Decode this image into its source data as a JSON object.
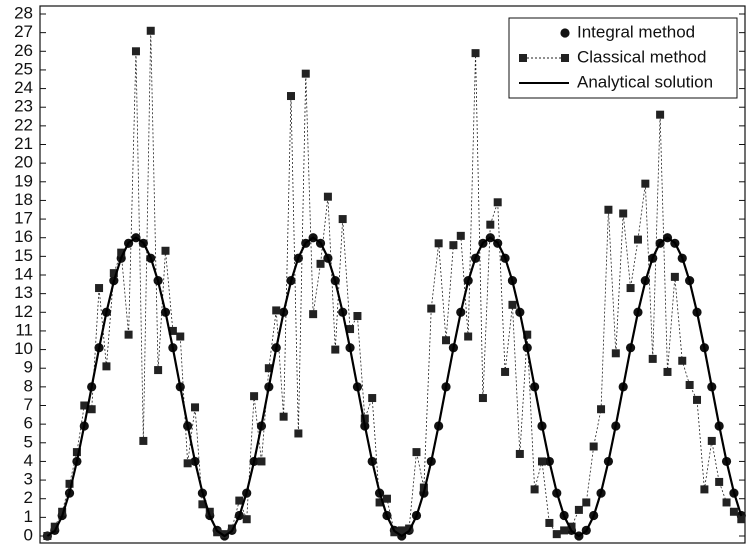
{
  "chart_data": {
    "type": "line",
    "x": [
      0,
      1,
      2,
      3,
      4,
      5,
      6,
      7,
      8,
      9,
      10,
      11,
      12,
      13,
      14,
      15,
      16,
      17,
      18,
      19,
      20,
      21,
      22,
      23,
      24,
      25,
      26,
      27,
      28,
      29,
      30,
      31,
      32,
      33,
      34,
      35,
      36,
      37,
      38,
      39,
      40,
      41,
      42,
      43,
      44,
      45,
      46,
      47,
      48,
      49,
      50,
      51,
      52,
      53,
      54,
      55,
      56,
      57,
      58,
      59,
      60,
      61,
      62,
      63,
      64,
      65,
      66,
      67,
      68,
      69,
      70,
      71,
      72,
      73,
      74,
      75,
      76,
      77,
      78,
      79,
      80,
      81,
      82,
      83,
      84,
      85,
      86,
      87,
      88,
      89,
      90,
      91,
      92,
      93,
      94
    ],
    "series": [
      {
        "name": "Integral method",
        "color": "#111111",
        "style": "circle",
        "values": [
          0,
          0.3,
          1.1,
          2.3,
          4,
          5.9,
          8,
          10.1,
          12,
          13.7,
          14.9,
          15.7,
          16,
          15.7,
          14.9,
          13.7,
          12,
          10.1,
          8,
          5.9,
          4,
          2.3,
          1.1,
          0.3,
          0,
          0.3,
          1.1,
          2.3,
          4,
          5.9,
          8,
          10.1,
          12,
          13.7,
          14.9,
          15.7,
          16,
          15.7,
          14.9,
          13.7,
          12,
          10.1,
          8,
          5.9,
          4,
          2.3,
          1.1,
          0.3,
          0,
          0.3,
          1.1,
          2.3,
          4,
          5.9,
          8,
          10.1,
          12,
          13.7,
          14.9,
          15.7,
          16,
          15.7,
          14.9,
          13.7,
          12,
          10.1,
          8,
          5.9,
          4,
          2.3,
          1.1,
          0.3,
          0,
          0.3,
          1.1,
          2.3,
          4,
          5.9,
          8,
          10.1,
          12,
          13.7,
          14.9,
          15.7,
          16,
          15.7,
          14.9,
          13.7,
          12,
          10.1,
          8,
          5.9,
          4,
          2.3,
          1.1
        ]
      },
      {
        "name": "Classical method",
        "color": "#222222",
        "style": "square-dashed",
        "values": [
          0,
          0.5,
          1.3,
          2.8,
          4.5,
          7,
          6.8,
          13.3,
          9.1,
          14.1,
          15.2,
          10.8,
          26,
          5.1,
          27.1,
          8.9,
          15.3,
          11,
          10.7,
          3.9,
          6.9,
          1.7,
          1.3,
          0.2,
          0.1,
          0.4,
          1.9,
          0.9,
          7.5,
          4,
          9,
          12.1,
          6.4,
          23.6,
          5.5,
          24.8,
          11.9,
          14.6,
          18.2,
          10,
          17,
          11.1,
          11.8,
          6.3,
          7.4,
          1.8,
          2,
          0.2,
          0.3,
          0.4,
          4.5,
          2.6,
          12.2,
          15.7,
          10.5,
          15.6,
          16.1,
          10.7,
          25.9,
          7.4,
          16.7,
          17.9,
          8.8,
          12.4,
          4.4,
          10.8,
          2.5,
          4,
          0.7,
          0.1,
          0.3,
          0.5,
          1.4,
          1.8,
          4.8,
          6.8,
          17.5,
          9.8,
          17.3,
          13.3,
          15.9,
          18.9,
          9.5,
          22.6,
          8.8,
          13.9,
          9.4,
          8.1,
          7.3,
          2.5,
          5.1,
          2.9,
          1.8,
          1.3,
          0.9
        ]
      },
      {
        "name": "Analytical solution",
        "color": "#000000",
        "style": "line",
        "values": [
          0,
          0.27,
          1.07,
          2.34,
          4,
          5.93,
          8,
          10.07,
          12,
          13.66,
          14.93,
          15.73,
          16,
          15.73,
          14.93,
          13.66,
          12,
          10.07,
          8,
          5.93,
          4,
          2.34,
          1.07,
          0.27,
          0,
          0.27,
          1.07,
          2.34,
          4,
          5.93,
          8,
          10.07,
          12,
          13.66,
          14.93,
          15.73,
          16,
          15.73,
          14.93,
          13.66,
          12,
          10.07,
          8,
          5.93,
          4,
          2.34,
          1.07,
          0.27,
          0,
          0.27,
          1.07,
          2.34,
          4,
          5.93,
          8,
          10.07,
          12,
          13.66,
          14.93,
          15.73,
          16,
          15.73,
          14.93,
          13.66,
          12,
          10.07,
          8,
          5.93,
          4,
          2.34,
          1.07,
          0.27,
          0,
          0.27,
          1.07,
          2.34,
          4,
          5.93,
          8,
          10.07,
          12,
          13.66,
          14.93,
          15.73,
          16,
          15.73,
          14.93,
          13.66,
          12,
          10.07,
          8,
          5.93,
          4,
          2.34,
          1.07
        ]
      }
    ],
    "xlim": [
      -1,
      94.5
    ],
    "ylim": [
      0,
      28
    ],
    "yticks": [
      0,
      1,
      2,
      3,
      4,
      5,
      6,
      7,
      8,
      9,
      10,
      11,
      12,
      13,
      14,
      15,
      16,
      17,
      18,
      19,
      20,
      21,
      22,
      23,
      24,
      25,
      26,
      27,
      28
    ],
    "legend": "upper right"
  }
}
